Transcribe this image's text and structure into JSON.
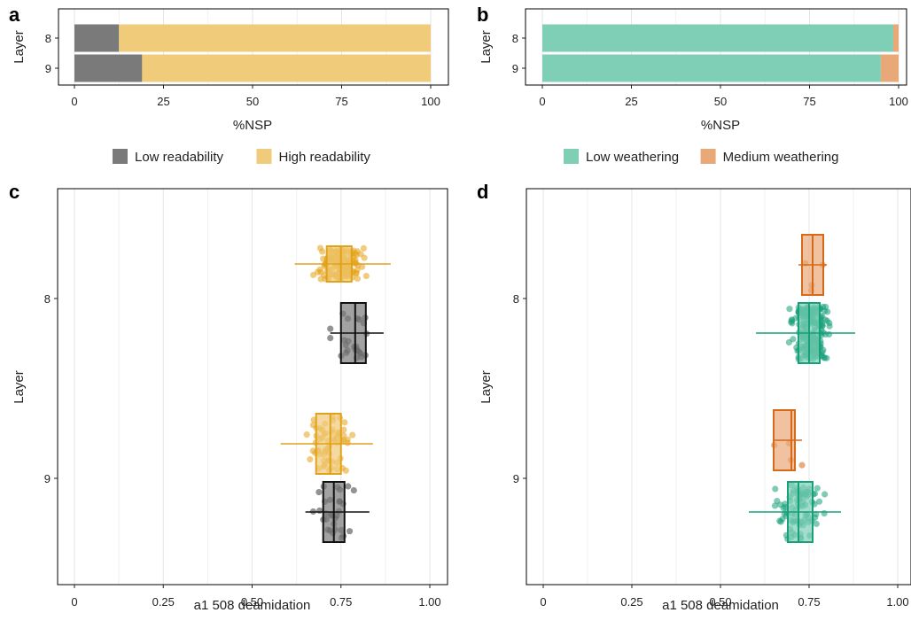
{
  "panels": {
    "a": "a",
    "b": "b",
    "c": "c",
    "d": "d"
  },
  "colors": {
    "low_readability": "#7a7a7a",
    "high_readability": "#f0cb7a",
    "low_weathering": "#7fcfb6",
    "medium_weathering": "#e9a877",
    "readability_low_point": "#3a3a3a",
    "readability_high_point": "#e6a317",
    "weathering_low_point": "#17a07a",
    "weathering_medium_point": "#d46a1a",
    "grid": "#e6e6e6"
  },
  "legends": {
    "readability": [
      {
        "label": "Low readability",
        "color": "#7a7a7a"
      },
      {
        "label": "High readability",
        "color": "#f0cb7a"
      }
    ],
    "weathering": [
      {
        "label": "Low weathering",
        "color": "#7fcfb6"
      },
      {
        "label": "Medium weathering",
        "color": "#e9a877"
      }
    ]
  },
  "chart_data": [
    {
      "panel": "a",
      "type": "bar",
      "orientation": "horizontal",
      "stacked": true,
      "categories": [
        "8",
        "9"
      ],
      "series": [
        {
          "name": "Low readability",
          "values": [
            12.5,
            19
          ]
        },
        {
          "name": "High readability",
          "values": [
            87.5,
            81
          ]
        }
      ],
      "xlabel": "%NSP",
      "ylabel": "Layer",
      "xlim": [
        0,
        100
      ],
      "xticks": [
        "0",
        "25",
        "50",
        "75",
        "100"
      ],
      "grid": true,
      "legend": "bottom"
    },
    {
      "panel": "b",
      "type": "bar",
      "orientation": "horizontal",
      "stacked": true,
      "categories": [
        "8",
        "9"
      ],
      "series": [
        {
          "name": "Low weathering",
          "values": [
            98.5,
            95
          ]
        },
        {
          "name": "Medium weathering",
          "values": [
            1.5,
            5
          ]
        }
      ],
      "xlabel": "%NSP",
      "ylabel": "Layer",
      "xlim": [
        0,
        100
      ],
      "xticks": [
        "0",
        "25",
        "50",
        "75",
        "100"
      ],
      "grid": true,
      "legend": "bottom"
    },
    {
      "panel": "c",
      "type": "box",
      "orientation": "horizontal",
      "categories": [
        "8",
        "9"
      ],
      "xlabel": "a1 508 deamidation",
      "ylabel": "Layer",
      "xlim": [
        0,
        1
      ],
      "xticks": [
        "0",
        "0.25",
        "0.50",
        "0.75",
        "1.00"
      ],
      "grid": true,
      "groups": [
        {
          "layer": "8",
          "series": "High readability",
          "q1": 0.71,
          "median": 0.75,
          "q3": 0.78,
          "whisker_low": 0.62,
          "whisker_high": 0.89,
          "n": 150
        },
        {
          "layer": "8",
          "series": "Low readability",
          "q1": 0.75,
          "median": 0.79,
          "q3": 0.82,
          "whisker_low": 0.72,
          "whisker_high": 0.87,
          "n": 25
        },
        {
          "layer": "9",
          "series": "High readability",
          "q1": 0.68,
          "median": 0.72,
          "q3": 0.75,
          "whisker_low": 0.58,
          "whisker_high": 0.84,
          "n": 60
        },
        {
          "layer": "9",
          "series": "Low readability",
          "q1": 0.7,
          "median": 0.73,
          "q3": 0.76,
          "whisker_low": 0.65,
          "whisker_high": 0.83,
          "n": 30
        }
      ]
    },
    {
      "panel": "d",
      "type": "box",
      "orientation": "horizontal",
      "categories": [
        "8",
        "9"
      ],
      "xlabel": "a1 508 deamidation",
      "ylabel": "Layer",
      "xlim": [
        0,
        1
      ],
      "xticks": [
        "0",
        "0.25",
        "0.50",
        "0.75",
        "1.00"
      ],
      "grid": true,
      "groups": [
        {
          "layer": "8",
          "series": "Medium weathering",
          "q1": 0.73,
          "median": 0.76,
          "q3": 0.79,
          "whisker_low": 0.72,
          "whisker_high": 0.8,
          "n": 4
        },
        {
          "layer": "8",
          "series": "Low weathering",
          "q1": 0.72,
          "median": 0.75,
          "q3": 0.78,
          "whisker_low": 0.6,
          "whisker_high": 0.88,
          "n": 200
        },
        {
          "layer": "9",
          "series": "Medium weathering",
          "q1": 0.65,
          "median": 0.7,
          "q3": 0.71,
          "whisker_low": 0.65,
          "whisker_high": 0.73,
          "n": 4
        },
        {
          "layer": "9",
          "series": "Low weathering",
          "q1": 0.69,
          "median": 0.72,
          "q3": 0.76,
          "whisker_low": 0.58,
          "whisker_high": 0.84,
          "n": 80
        }
      ]
    }
  ]
}
